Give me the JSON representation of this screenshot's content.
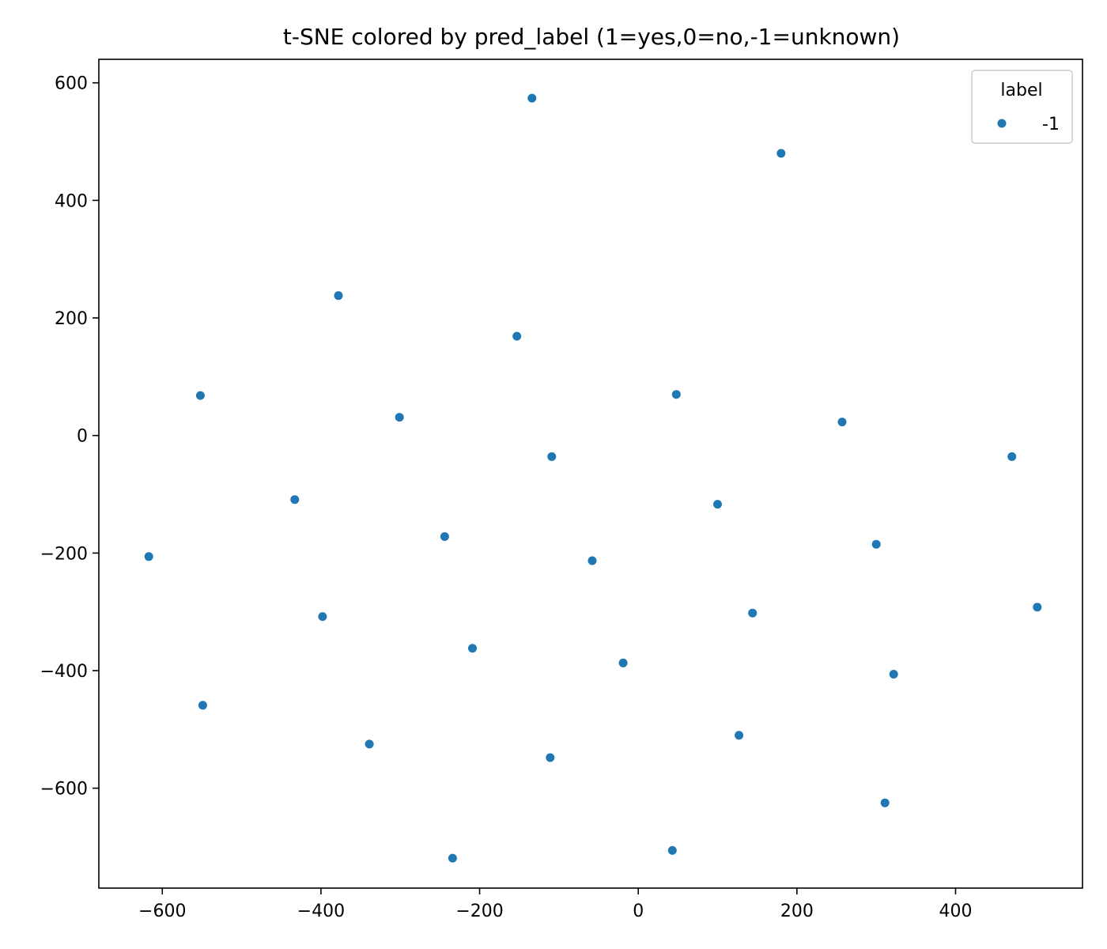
{
  "chart_data": {
    "type": "scatter",
    "title": "t-SNE colored by pred_label (1=yes,0=no,-1=unknown)",
    "xlabel": "",
    "ylabel": "",
    "xlim": [
      -680,
      560
    ],
    "ylim": [
      -770,
      640
    ],
    "xticks": [
      -600,
      -400,
      -200,
      0,
      200,
      400
    ],
    "yticks": [
      -600,
      -400,
      -200,
      0,
      200,
      400,
      600
    ],
    "xtick_labels": [
      "−600",
      "−400",
      "−200",
      "0",
      "200",
      "400"
    ],
    "ytick_labels": [
      "−600",
      "−400",
      "−200",
      "0",
      "200",
      "400",
      "600"
    ],
    "grid": false,
    "legend": {
      "title": "label",
      "placement": "top-right",
      "entries": [
        "-1"
      ]
    },
    "series": [
      {
        "name": "-1",
        "color": "#1f77b4",
        "points": [
          [
            -134,
            574
          ],
          [
            180,
            480
          ],
          [
            -378,
            238
          ],
          [
            -153,
            169
          ],
          [
            -552,
            68
          ],
          [
            48,
            70
          ],
          [
            -301,
            31
          ],
          [
            257,
            23
          ],
          [
            -109,
            -36
          ],
          [
            471,
            -36
          ],
          [
            -433,
            -109
          ],
          [
            100,
            -117
          ],
          [
            -617,
            -206
          ],
          [
            -244,
            -172
          ],
          [
            -58,
            -213
          ],
          [
            300,
            -185
          ],
          [
            -398,
            -308
          ],
          [
            144,
            -302
          ],
          [
            503,
            -292
          ],
          [
            -209,
            -362
          ],
          [
            -19,
            -387
          ],
          [
            322,
            -406
          ],
          [
            -549,
            -459
          ],
          [
            -339,
            -525
          ],
          [
            127,
            -510
          ],
          [
            -111,
            -548
          ],
          [
            311,
            -625
          ],
          [
            -234,
            -719
          ],
          [
            43,
            -706
          ]
        ]
      }
    ]
  }
}
